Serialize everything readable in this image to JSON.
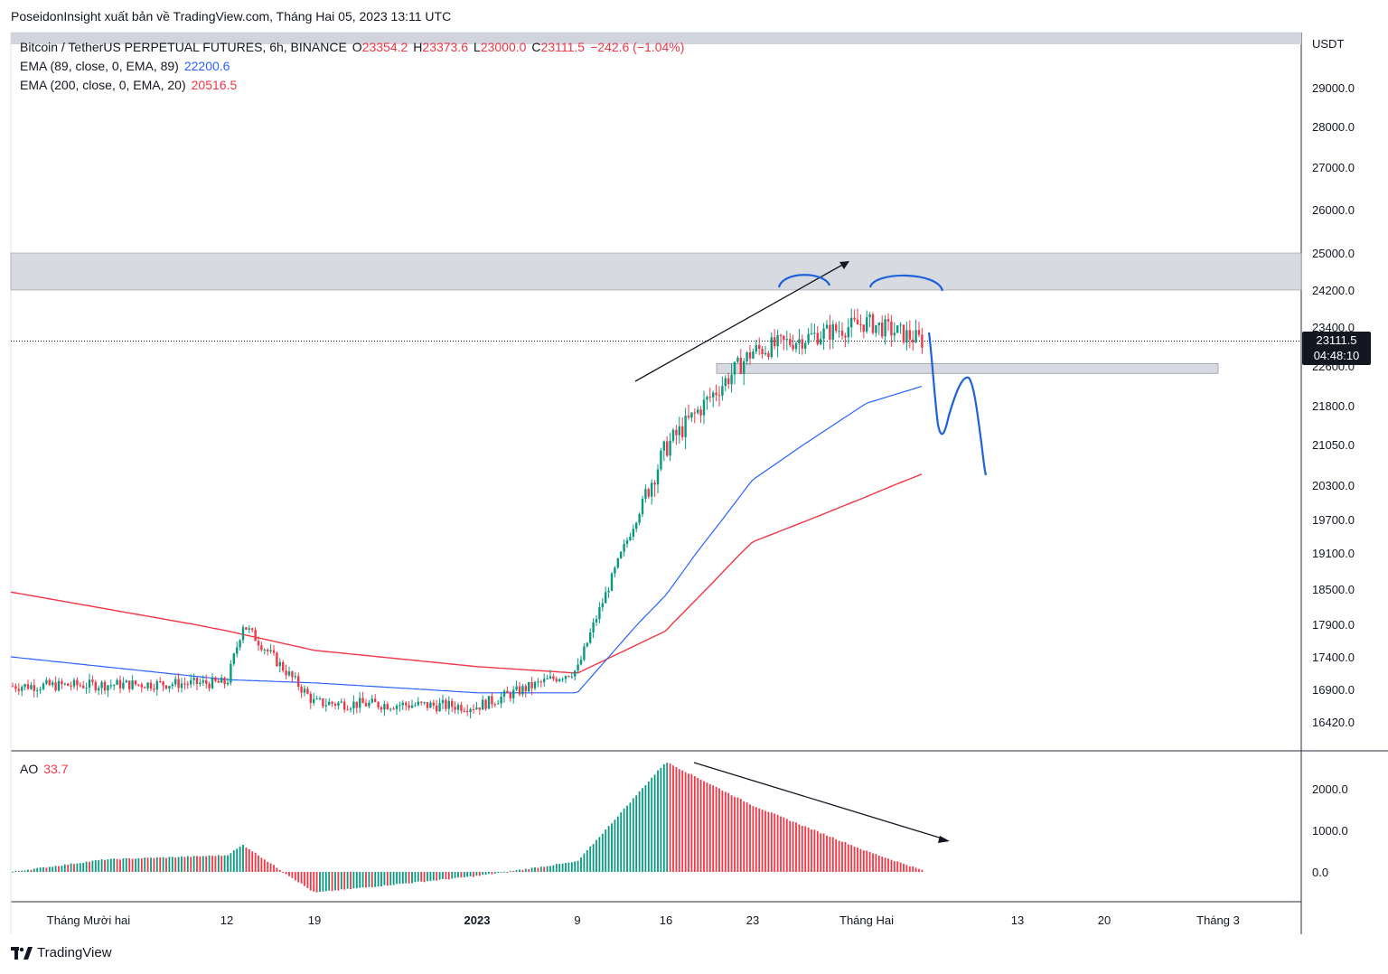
{
  "header": {
    "text": "PoseidonInsight xuất bản về TradingView.com, Tháng Hai 05, 2023 13:11 UTC"
  },
  "legend": {
    "symbol": "Bitcoin / TetherUS PERPETUAL FUTURES, 6h, BINANCE",
    "open_label": "O",
    "open": "23354.2",
    "high_label": "H",
    "high": "23373.6",
    "low_label": "L",
    "low": "23000.0",
    "close_label": "C",
    "close": "23111.5",
    "change": "−242.6 (−1.04%)",
    "ema1_label": "EMA (89, close, 0, EMA, 89)",
    "ema1_value": "22200.6",
    "ema2_label": "EMA (200, close, 0, EMA, 20)",
    "ema2_value": "20516.5"
  },
  "ao_legend": {
    "label": "AO",
    "value": "33.7"
  },
  "price_tag": {
    "price": "23111.5",
    "countdown": "04:48:10"
  },
  "brand": {
    "name": "TradingView"
  },
  "colors": {
    "up": "#089981",
    "down": "#f23645",
    "ema89": "#2962ff",
    "ema200": "#f23645",
    "zone": "#d1d4dc",
    "drawing": "#1e62d9",
    "trendline": "#131722"
  },
  "chart_data": {
    "type": "candlestick",
    "currency": "USDT",
    "ylim": [
      16000,
      30000
    ],
    "y_ticks": [
      "29000.0",
      "28000.0",
      "27000.0",
      "26000.0",
      "25000.0",
      "24200.0",
      "23400.0",
      "22600.0",
      "21800.0",
      "21050.0",
      "20300.0",
      "19700.0",
      "19100.0",
      "18500.0",
      "17900.0",
      "17400.0",
      "16900.0",
      "16420.0"
    ],
    "x_ticks": [
      "Tháng Mười hai",
      "12",
      "19",
      "2023",
      "9",
      "16",
      "23",
      "Tháng Hai",
      "13",
      "20",
      "Tháng 3"
    ],
    "zones": [
      {
        "from": 24200,
        "to": 25000
      },
      {
        "from": 22450,
        "to": 22650
      }
    ],
    "price_line": 23111.5,
    "close_path": [
      [
        "Tháng Mười hai",
        16950
      ],
      [
        "12",
        17000
      ],
      [
        "12",
        17900
      ],
      [
        "19",
        16700
      ],
      [
        "2023",
        16650
      ],
      [
        "9",
        17200
      ],
      [
        "16",
        21000
      ],
      [
        "23",
        22900
      ],
      [
        "Tháng Hai",
        23500
      ],
      [
        "Tháng Hai",
        23111.5
      ]
    ],
    "ema89_path": [
      [
        "Tháng Mười hai",
        17400
      ],
      [
        "12",
        17050
      ],
      [
        "19",
        17000
      ],
      [
        "2023",
        16850
      ],
      [
        "9",
        16850
      ],
      [
        "16",
        18400
      ],
      [
        "23",
        20400
      ],
      [
        "Tháng Hai",
        21850
      ],
      [
        "Tháng Hai",
        22200.6
      ]
    ],
    "ema200_path": [
      [
        "Tháng Mười hai",
        18450
      ],
      [
        "12",
        17800
      ],
      [
        "19",
        17500
      ],
      [
        "2023",
        17250
      ],
      [
        "9",
        17150
      ],
      [
        "16",
        17800
      ],
      [
        "23",
        19300
      ],
      [
        "Tháng Hai",
        20100
      ],
      [
        "Tháng Hai",
        20516.5
      ]
    ],
    "ao": {
      "ylim": [
        -800,
        2800
      ],
      "y_ticks": [
        "2000.0",
        "1000.0",
        "0.0"
      ],
      "profile": [
        [
          "Tháng Mười hai",
          0
        ],
        [
          "Tháng Mười hai",
          300
        ],
        [
          "12",
          400
        ],
        [
          "12",
          650
        ],
        [
          "19",
          -500
        ],
        [
          "2023",
          -100
        ],
        [
          "9",
          250
        ],
        [
          "16",
          2650
        ],
        [
          "23",
          1600
        ],
        [
          "Tháng Hai",
          500
        ],
        [
          "Tháng Hai",
          33.7
        ]
      ]
    }
  }
}
